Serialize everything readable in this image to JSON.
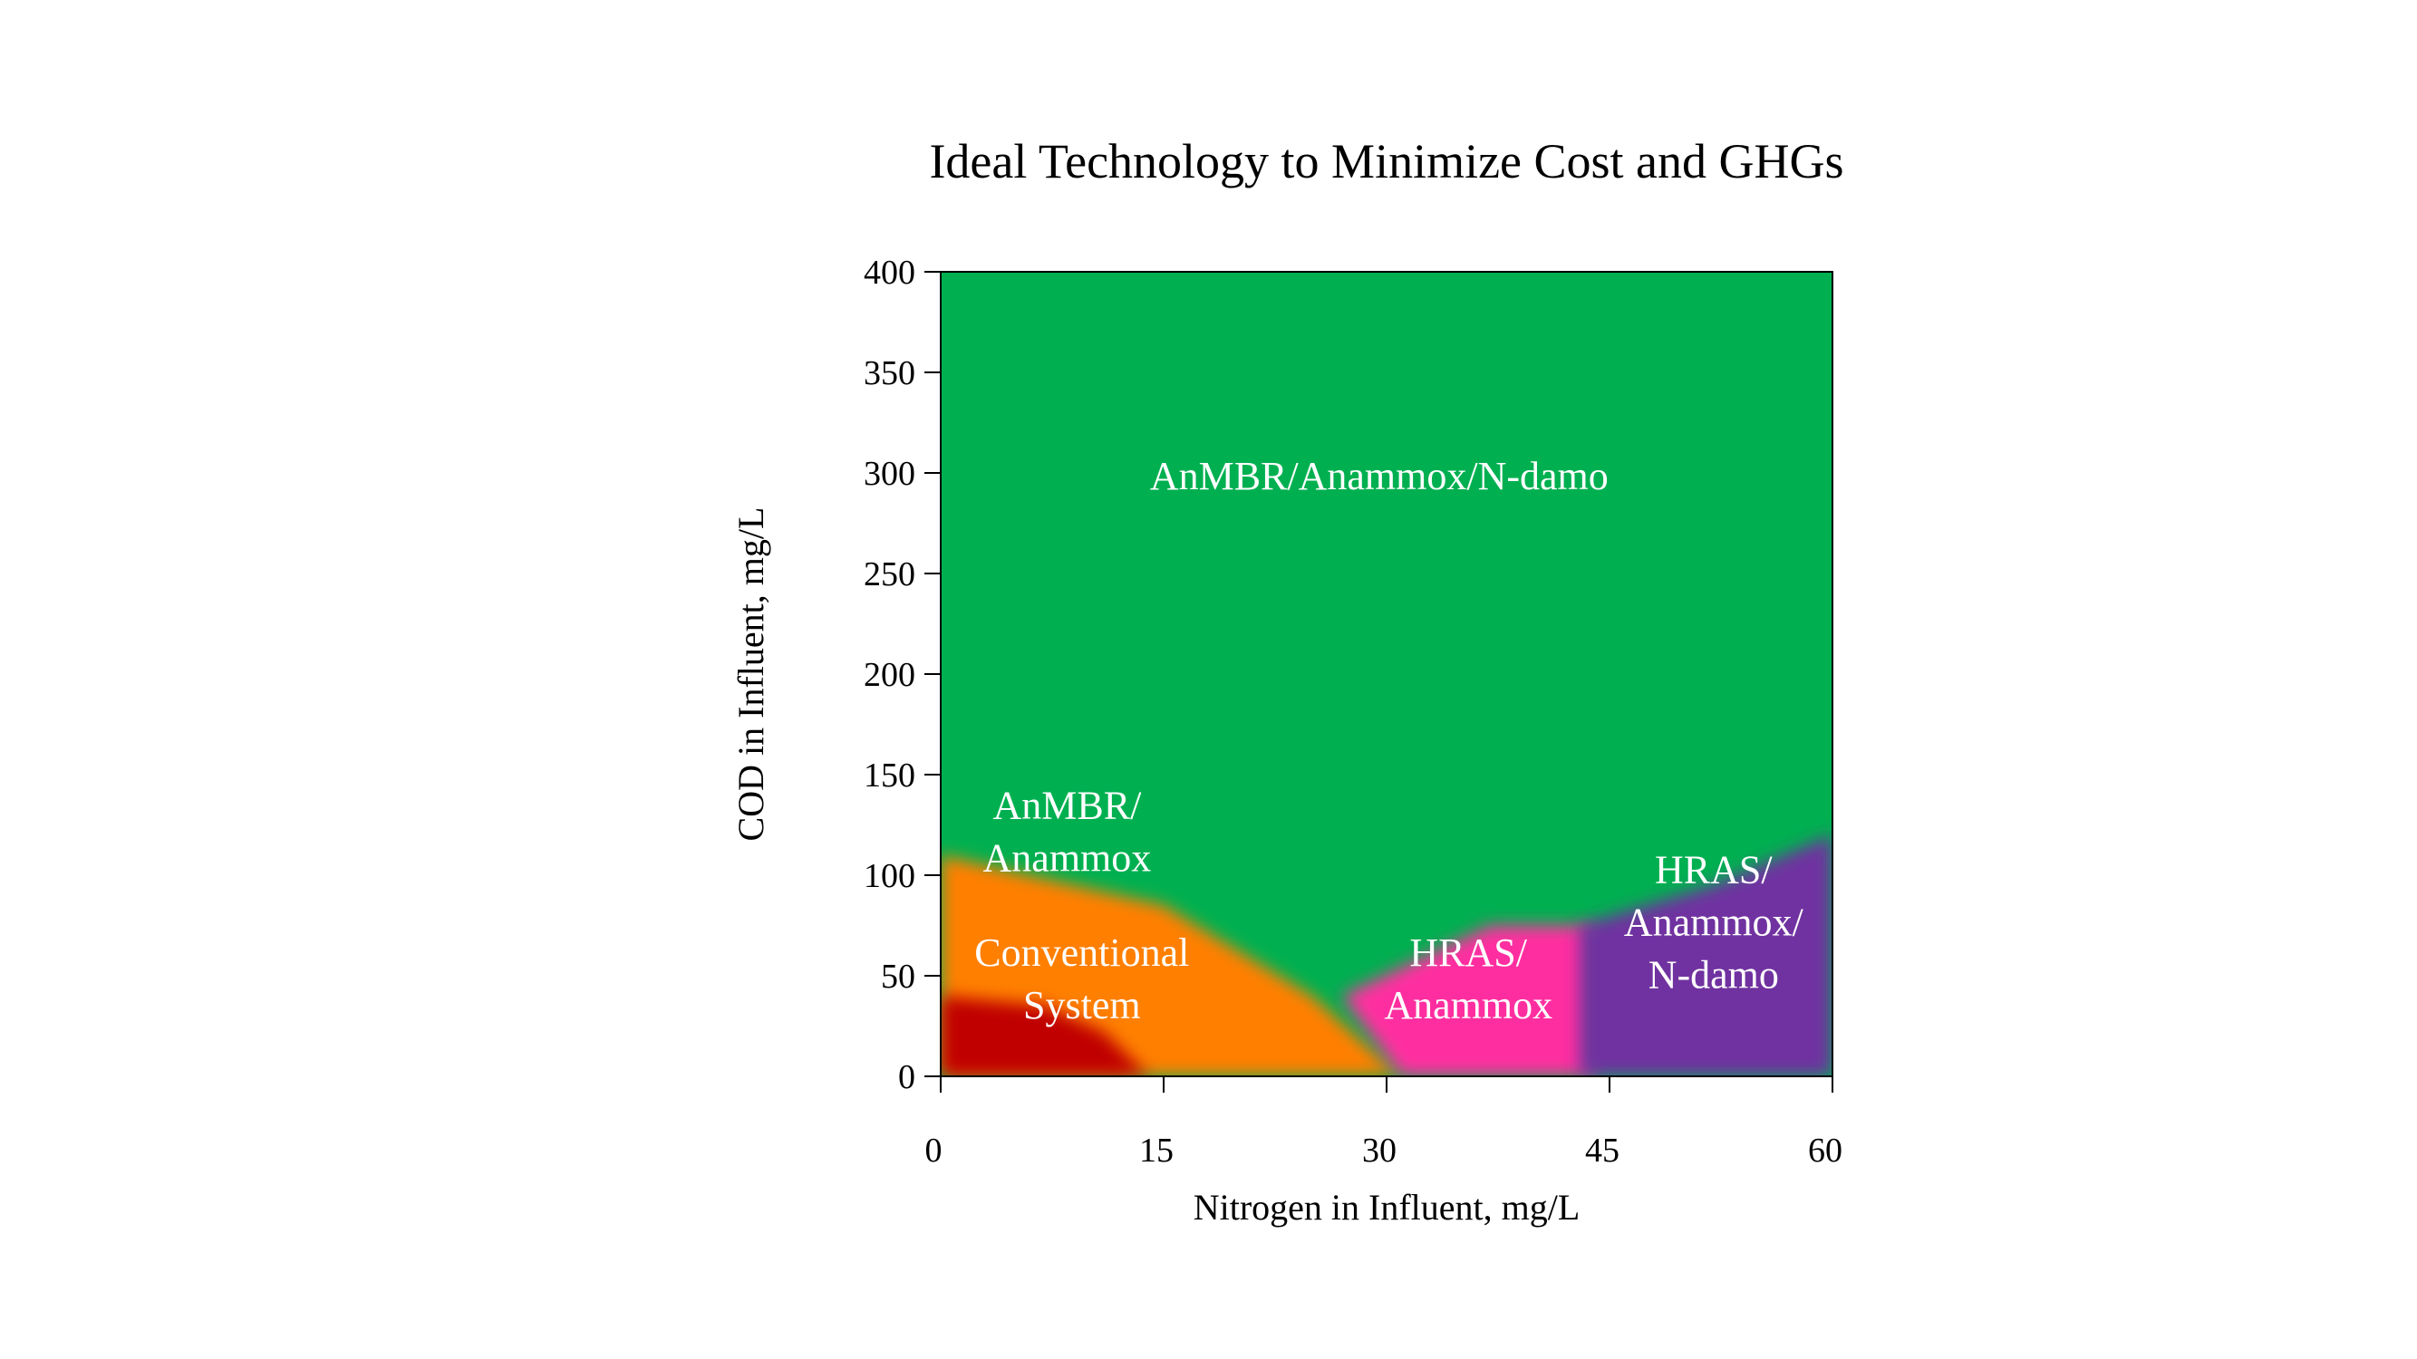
{
  "chart_data": {
    "type": "heatmap",
    "title": "Ideal Technology to Minimize Cost and GHGs",
    "xlabel": "Nitrogen in Influent, mg/L",
    "ylabel": "COD in Influent, mg/L",
    "xlim": [
      0,
      60
    ],
    "ylim": [
      0,
      400
    ],
    "x_ticks": [
      0,
      15,
      30,
      45,
      60
    ],
    "y_ticks": [
      0,
      50,
      100,
      150,
      200,
      250,
      300,
      350,
      400
    ],
    "regions": [
      {
        "name": "anmbr-anammox-ndamo",
        "label": [
          "AnMBR/Anammox/N-damo"
        ],
        "color": "#00b050",
        "polygon": [
          [
            0,
            0
          ],
          [
            60,
            0
          ],
          [
            60,
            400
          ],
          [
            0,
            400
          ]
        ],
        "label_at": [
          29.5,
          292
        ]
      },
      {
        "name": "anmbr-anammox",
        "label": [
          "AnMBR/",
          "Anammox"
        ],
        "color": "#ff7f00",
        "polygon": [
          [
            0,
            0
          ],
          [
            31,
            0
          ],
          [
            25,
            40
          ],
          [
            15,
            85
          ],
          [
            0,
            110
          ]
        ],
        "label_at": [
          8.5,
          115
        ]
      },
      {
        "name": "conventional-system",
        "label": [
          "Conventional",
          "System"
        ],
        "color": "#c00000",
        "polygon": [
          [
            0,
            0
          ],
          [
            14,
            0
          ],
          [
            11,
            22
          ],
          [
            7,
            35
          ],
          [
            0,
            40
          ]
        ],
        "label_at": [
          9.5,
          42
        ]
      },
      {
        "name": "hras-anammox",
        "label": [
          "HRAS/",
          "Anammox"
        ],
        "color": "#ff2fa0",
        "polygon": [
          [
            31,
            0
          ],
          [
            44,
            0
          ],
          [
            44,
            75
          ],
          [
            37,
            75
          ],
          [
            27,
            40
          ]
        ],
        "label_at": [
          35.5,
          42
        ]
      },
      {
        "name": "hras-anammox-ndamo",
        "label": [
          "HRAS/",
          "Anammox/",
          "N-damo"
        ],
        "color": "#7030a0",
        "polygon": [
          [
            43,
            0
          ],
          [
            60,
            0
          ],
          [
            60,
            120
          ],
          [
            52,
            95
          ],
          [
            43,
            75
          ]
        ],
        "label_at": [
          52,
          70
        ]
      }
    ]
  }
}
